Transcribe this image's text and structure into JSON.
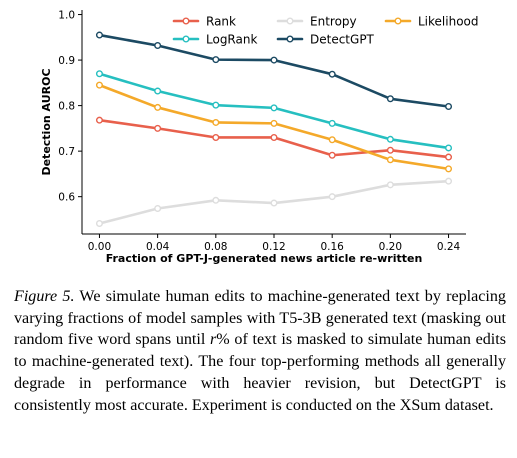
{
  "chart_data": {
    "type": "line",
    "xlabel": "Fraction of GPT-J-generated news article re-written",
    "ylabel": "Detection AUROC",
    "x": [
      0.0,
      0.04,
      0.08,
      0.12,
      0.16,
      0.2,
      0.24
    ],
    "x_tick_labels": [
      "0.00",
      "0.04",
      "0.08",
      "0.12",
      "0.16",
      "0.20",
      "0.24"
    ],
    "y_ticks": [
      0.6,
      0.7,
      0.8,
      0.9,
      1.0
    ],
    "y_tick_labels": [
      "0.6",
      "0.7",
      "0.8",
      "0.9",
      "1.0"
    ],
    "xlim": [
      -0.012,
      0.252
    ],
    "ylim": [
      0.518,
      1.01
    ],
    "grid": false,
    "legend_position": "top-right",
    "series": [
      {
        "name": "Rank",
        "color": "#e8604c",
        "values": [
          0.768,
          0.75,
          0.73,
          0.73,
          0.691,
          0.702,
          0.687
        ]
      },
      {
        "name": "LogRank",
        "color": "#26bfc0",
        "values": [
          0.87,
          0.832,
          0.801,
          0.795,
          0.761,
          0.726,
          0.707
        ]
      },
      {
        "name": "Entropy",
        "color": "#dddddd",
        "values": [
          0.541,
          0.574,
          0.592,
          0.586,
          0.6,
          0.626,
          0.634
        ]
      },
      {
        "name": "DetectGPT",
        "color": "#1c4a63",
        "values": [
          0.955,
          0.932,
          0.901,
          0.9,
          0.869,
          0.815,
          0.798
        ]
      },
      {
        "name": "Likelihood",
        "color": "#f4a92a",
        "values": [
          0.845,
          0.796,
          0.763,
          0.761,
          0.725,
          0.681,
          0.661
        ]
      }
    ],
    "legend_order": [
      "Rank",
      "LogRank",
      "Entropy",
      "DetectGPT",
      "Likelihood"
    ]
  },
  "caption": {
    "figure_label": "Figure 5.",
    "part1": " We simulate human edits to machine-generated text by replacing varying fractions of model samples with T5-3B generated text (masking out random five word spans until ",
    "math": "r",
    "part2": "% of text is masked to simulate human edits to machine-generated text). The four top-performing methods all generally degrade in performance with heavier revision, but DetectGPT is consistently most accurate. Experiment is conducted on the XSum dataset."
  }
}
